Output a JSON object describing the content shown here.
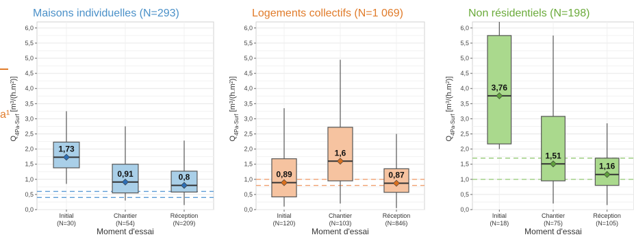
{
  "left_fragment": {
    "text": "a¹"
  },
  "chart_data": [
    {
      "type": "box",
      "title": "Maisons individuelles (N=293)",
      "title_color": "#4a90c8",
      "fill": "#a9cfe8",
      "marker": "#2e6fb5",
      "ref_color": "#5b9bd5",
      "xlabel": "Moment d'essai",
      "ylabel": "Q4Pa-Surf [m3/(h.m2)]",
      "ylim": [
        0,
        6.2
      ],
      "yticks": [
        "0,0",
        "0,5",
        "1,0",
        "1,5",
        "2,0",
        "2,5",
        "3,0",
        "3,5",
        "4,0",
        "4,5",
        "5,0",
        "5,5",
        "6,0"
      ],
      "ref_lines": [
        0.6,
        0.4
      ],
      "boxes": [
        {
          "name": "Initial",
          "n": "(N=30)",
          "whisker_low": 0.85,
          "q1": 1.38,
          "median": 1.73,
          "q3": 2.23,
          "whisker_high": 3.25,
          "mean": 1.73,
          "label": "1,73"
        },
        {
          "name": "Chantier",
          "n": "(N=54)",
          "whisker_low": 0.3,
          "q1": 0.55,
          "median": 0.91,
          "q3": 1.5,
          "whisker_high": 2.75,
          "mean": 0.91,
          "label": "0,91"
        },
        {
          "name": "Réception",
          "n": "(N=209)",
          "whisker_low": 0.15,
          "q1": 0.58,
          "median": 0.8,
          "q3": 1.27,
          "whisker_high": 2.28,
          "mean": 0.8,
          "label": "0,8"
        }
      ]
    },
    {
      "type": "box",
      "title": "Logements collectifs (N=1 069)",
      "title_color": "#e07b2a",
      "fill": "#f6c3a0",
      "marker": "#d9701f",
      "ref_color": "#f0a070",
      "xlabel": "Moment d'essai",
      "ylabel": "Q4Pa-Surf [m3/(h.m2)]",
      "ylim": [
        0,
        6.2
      ],
      "yticks": [
        "0,0",
        "0,5",
        "1,0",
        "1,5",
        "2,0",
        "2,5",
        "3,0",
        "3,5",
        "4,0",
        "4,5",
        "5,0",
        "5,5",
        "6,0"
      ],
      "ref_lines": [
        1.0,
        0.8
      ],
      "boxes": [
        {
          "name": "Initial",
          "n": "(N=120)",
          "whisker_low": 0.1,
          "q1": 0.42,
          "median": 0.89,
          "q3": 1.68,
          "whisker_high": 3.35,
          "mean": 0.89,
          "label": "0,89"
        },
        {
          "name": "Chantier",
          "n": "(N=103)",
          "whisker_low": 0.2,
          "q1": 0.95,
          "median": 1.6,
          "q3": 2.72,
          "whisker_high": 4.95,
          "mean": 1.6,
          "label": "1,6"
        },
        {
          "name": "Réception",
          "n": "(N=846)",
          "whisker_low": 0.05,
          "q1": 0.57,
          "median": 0.87,
          "q3": 1.35,
          "whisker_high": 2.5,
          "mean": 0.87,
          "label": "0,87"
        }
      ]
    },
    {
      "type": "box",
      "title": "Non résidentiels (N=198)",
      "title_color": "#6aaa3a",
      "fill": "#aad98d",
      "marker": "#5f9f3d",
      "ref_color": "#9ccd7f",
      "xlabel": "Moment d'essai",
      "ylabel": "Q4Pa-Surf [m3/(h.m2)]",
      "ylim": [
        0,
        6.2
      ],
      "yticks": [
        "0,0",
        "0,5",
        "1,0",
        "1,5",
        "2,0",
        "2,5",
        "3,0",
        "3,5",
        "4,0",
        "4,5",
        "5,0",
        "5,5",
        "6,0"
      ],
      "ref_lines": [
        1.7,
        1.0
      ],
      "boxes": [
        {
          "name": "Initial",
          "n": "(N=18)",
          "whisker_low": 2.0,
          "q1": 2.17,
          "median": 3.76,
          "q3": 5.75,
          "whisker_high": 6.3,
          "mean": 3.76,
          "label": "3,76"
        },
        {
          "name": "Chantier",
          "n": "(N=75)",
          "whisker_low": 0.2,
          "q1": 0.95,
          "median": 1.51,
          "q3": 3.08,
          "whisker_high": 5.75,
          "mean": 1.51,
          "label": "1,51"
        },
        {
          "name": "Réception",
          "n": "(N=105)",
          "whisker_low": 0.15,
          "q1": 0.8,
          "median": 1.16,
          "q3": 1.7,
          "whisker_high": 2.85,
          "mean": 1.16,
          "label": "1,16"
        }
      ]
    }
  ]
}
